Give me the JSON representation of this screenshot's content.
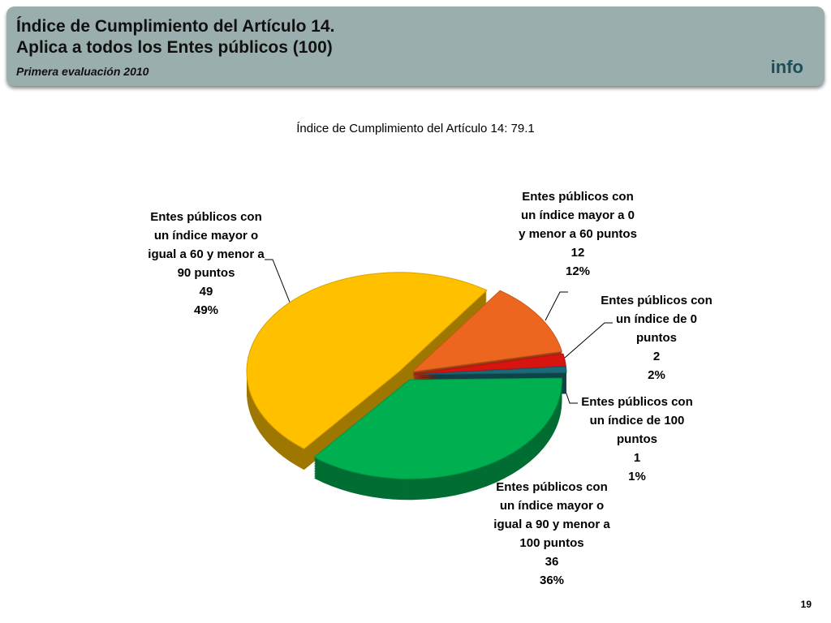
{
  "header": {
    "title_line1": "Índice de Cumplimiento del Artículo 14.",
    "title_line2": "Aplica a todos los Entes públicos (100)",
    "subtitle": "Primera evaluación 2010",
    "logo": "info"
  },
  "chart_data": {
    "type": "pie",
    "title": "Índice de Cumplimiento del Artículo 14: 79.1",
    "categories": [
      "Entes públicos con un índice mayor a 0 y menor a 60 puntos",
      "Entes públicos con un índice de 0 puntos",
      "Entes públicos con un índice de 100 puntos",
      "Entes públicos con un índice mayor o igual a 90 y menor a 100 puntos",
      "Entes públicos con un índice mayor o igual a 60 y menor a 90 puntos"
    ],
    "values": [
      12,
      2,
      1,
      36,
      49
    ],
    "value_labels": [
      "12%",
      "2%",
      "1%",
      "36%",
      "49%"
    ],
    "colors": [
      "#ec6620",
      "#d7140f",
      "#1a6a78",
      "#00b050",
      "#ffc000"
    ]
  },
  "page_number": "19"
}
